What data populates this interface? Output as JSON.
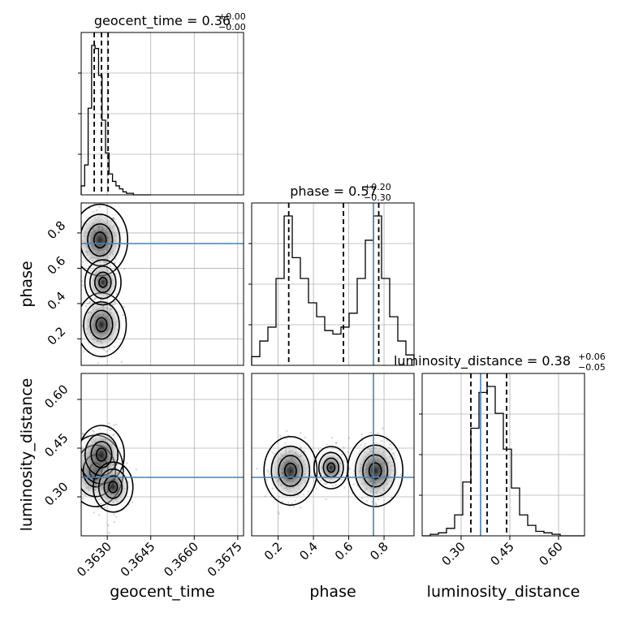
{
  "chart_data": {
    "type": "corner",
    "parameters": [
      "geocent_time",
      "phase",
      "luminosity_distance"
    ],
    "axis_labels": {
      "geocent_time": "geocent_time",
      "phase": "phase",
      "luminosity_distance": "luminosity_distance"
    },
    "titles": [
      {
        "parameter": "geocent_time",
        "main": "geocent_time = 0.36",
        "plus": "+0.00",
        "minus": "−0.00"
      },
      {
        "parameter": "phase",
        "main": "phase = 0.57",
        "plus": "+0.20",
        "minus": "−0.30"
      },
      {
        "parameter": "luminosity_distance",
        "main": "luminosity_distance = 0.38",
        "plus": "+0.06",
        "minus": "−0.05"
      }
    ],
    "ranges": {
      "geocent_time": [
        0.3621,
        0.3677
      ],
      "phase": [
        0.05,
        0.97
      ],
      "luminosity_distance": [
        0.18,
        0.68
      ]
    },
    "ticks": {
      "geocent_time": {
        "values": [
          0.363,
          0.3645,
          0.366,
          0.3675
        ],
        "labels": [
          "0.3630",
          "0.3645",
          "0.3660",
          "0.3675"
        ]
      },
      "phase": {
        "values": [
          0.2,
          0.4,
          0.6,
          0.8
        ],
        "labels": [
          "0.2",
          "0.4",
          "0.6",
          "0.8"
        ]
      },
      "luminosity_distance": {
        "values": [
          0.3,
          0.45,
          0.6
        ],
        "labels": [
          "0.30",
          "0.45",
          "0.60"
        ]
      }
    },
    "truths": {
      "phase": 0.74,
      "luminosity_distance": 0.36
    },
    "quantiles": {
      "geocent_time": [
        0.36255,
        0.3628,
        0.36303
      ],
      "phase": [
        0.26,
        0.57,
        0.77
      ],
      "luminosity_distance": [
        0.33,
        0.38,
        0.44
      ]
    },
    "histograms": {
      "geocent_time": {
        "bins": [
          0.3621,
          0.36222,
          0.36234,
          0.36246,
          0.36258,
          0.3627,
          0.36282,
          0.36294,
          0.36306,
          0.36318,
          0.3633,
          0.36342,
          0.36354,
          0.36366,
          0.36378,
          0.3639,
          0.36402,
          0.36414,
          0.36426,
          0.36438,
          0.3645
        ],
        "counts": [
          0.06,
          0.2,
          0.58,
          1.0,
          0.98,
          0.8,
          0.5,
          0.28,
          0.14,
          0.09,
          0.06,
          0.04,
          0.02,
          0.01,
          0.01,
          0.0,
          0.0,
          0.0,
          0.0,
          0.0
        ]
      },
      "phase": {
        "bins": [
          0.05,
          0.096,
          0.142,
          0.188,
          0.234,
          0.28,
          0.326,
          0.372,
          0.418,
          0.464,
          0.51,
          0.556,
          0.602,
          0.648,
          0.694,
          0.74,
          0.786,
          0.832,
          0.878,
          0.924,
          0.97
        ],
        "counts": [
          0.05,
          0.14,
          0.22,
          0.5,
          0.86,
          0.62,
          0.5,
          0.36,
          0.28,
          0.2,
          0.18,
          0.22,
          0.3,
          0.5,
          0.72,
          0.86,
          0.5,
          0.28,
          0.14,
          0.06
        ]
      },
      "luminosity_distance": {
        "bins": [
          0.18,
          0.205,
          0.23,
          0.255,
          0.28,
          0.305,
          0.33,
          0.355,
          0.38,
          0.405,
          0.43,
          0.455,
          0.48,
          0.505,
          0.53,
          0.555,
          0.58,
          0.605,
          0.63,
          0.655,
          0.68
        ],
        "counts": [
          0.0,
          0.01,
          0.02,
          0.05,
          0.14,
          0.36,
          0.72,
          0.96,
          1.0,
          0.82,
          0.58,
          0.32,
          0.14,
          0.07,
          0.03,
          0.02,
          0.01,
          0.0,
          0.0,
          0.0
        ]
      }
    },
    "density_modes": {
      "geocent_time_vs_phase": [
        {
          "x": 0.36275,
          "y": 0.76,
          "weight": 1.0
        },
        {
          "x": 0.3628,
          "y": 0.28,
          "weight": 0.75
        },
        {
          "x": 0.36285,
          "y": 0.52,
          "weight": 0.3
        }
      ],
      "geocent_time_vs_luminosity_distance": [
        {
          "x": 0.3626,
          "y": 0.38,
          "weight": 1.0
        },
        {
          "x": 0.3628,
          "y": 0.43,
          "weight": 0.6
        },
        {
          "x": 0.3632,
          "y": 0.33,
          "weight": 0.4
        }
      ],
      "phase_vs_luminosity_distance": [
        {
          "x": 0.27,
          "y": 0.38,
          "weight": 0.9
        },
        {
          "x": 0.75,
          "y": 0.38,
          "weight": 1.0
        },
        {
          "x": 0.5,
          "y": 0.39,
          "weight": 0.25
        }
      ]
    },
    "grid": true,
    "colors": {
      "truth": "#4682b4",
      "lines": "#000000",
      "samples": "#555555",
      "grid": "#b0b0b0"
    }
  }
}
